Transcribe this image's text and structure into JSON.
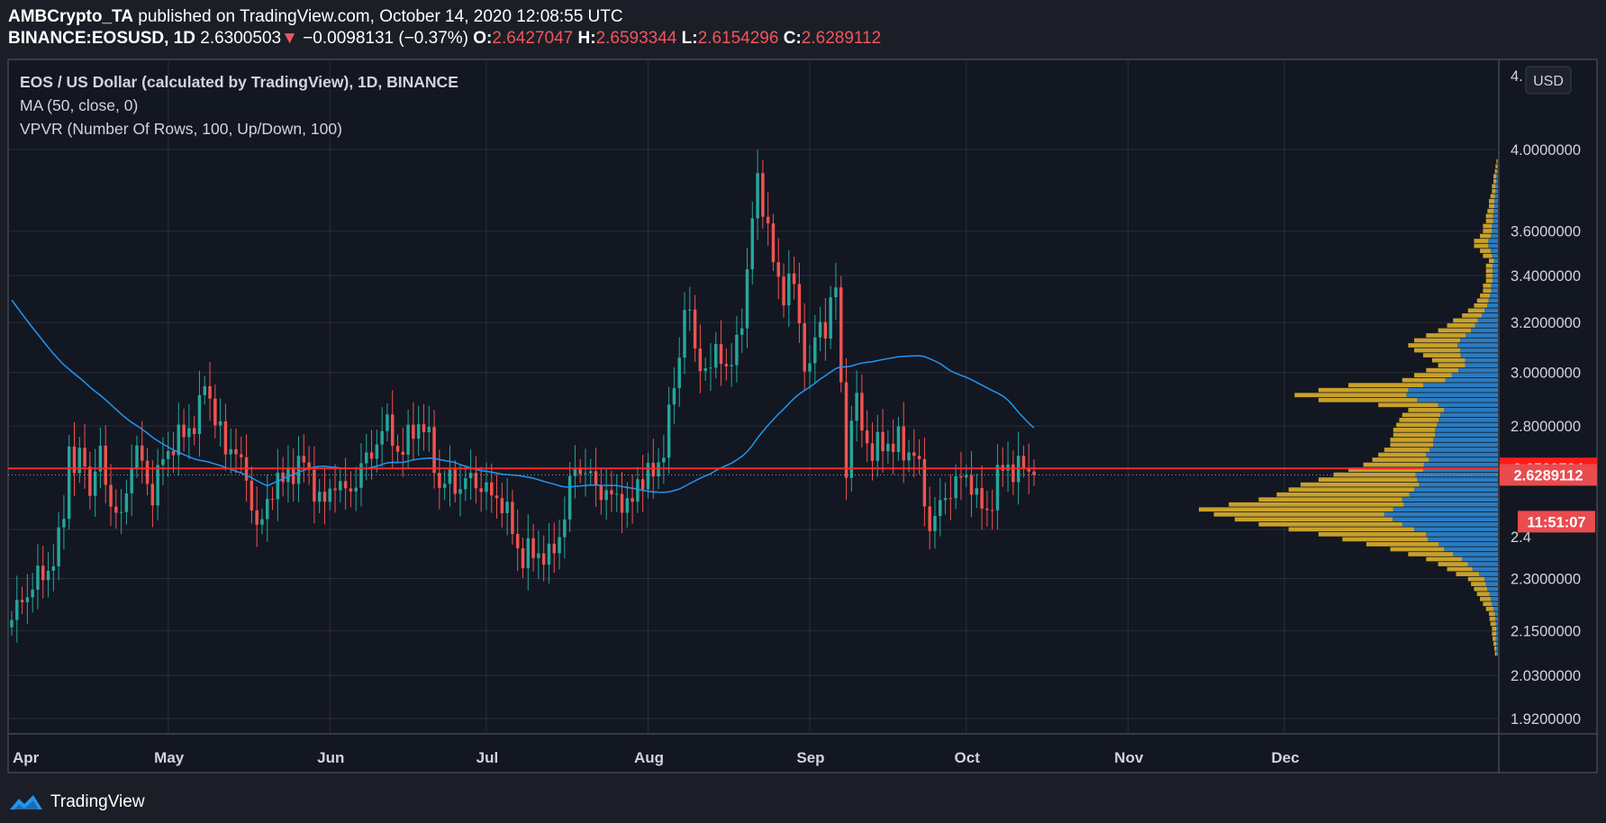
{
  "header": {
    "author": "AMBCrypto_TA",
    "published": "published on TradingView.com, October 14, 2020 12:08:55 UTC",
    "symbol": "BINANCE:EOSUSD, 1D",
    "last": "2.6300503",
    "down_arrow": "▼",
    "change": "−0.0098131 (−0.37%)",
    "o_label": "O:",
    "o_value": "2.6427047",
    "h_label": "H:",
    "h_value": "2.6593344",
    "l_label": "L:",
    "l_value": "2.6154296",
    "c_label": "C:",
    "c_value": "2.6289112"
  },
  "legend": {
    "line1": "EOS / US Dollar (calculated by TradingView), 1D, BINANCE",
    "line2": "MA (50, close, 0)",
    "line3": "VPVR (Number Of Rows, 100, Up/Down, 100)"
  },
  "currency_badge": "USD",
  "footer": {
    "brand": "TradingView"
  },
  "colors": {
    "background": "#131722",
    "frame": "#1c1e27",
    "grid": "#2a2e39",
    "up": "#26a69a",
    "down": "#ef5350",
    "ma": "#2196f3",
    "vp_up": "#2b7bbf",
    "vp_down": "#c8a12a",
    "price_line": "#ff2a2a"
  },
  "chart_data": {
    "type": "candlestick",
    "scale": "log",
    "ylim": [
      1.88,
      4.2
    ],
    "x_ticks": [
      "Apr",
      "May",
      "Jun",
      "Jul",
      "Aug",
      "Sep",
      "Oct",
      "Nov",
      "Dec"
    ],
    "y_ticks": [
      "4.0000000",
      "3.6000000",
      "3.4000000",
      "3.2000000",
      "3.0000000",
      "2.8000000",
      "2.3000000",
      "2.1500000",
      "2.0300000",
      "1.9200000"
    ],
    "top_partial_tick": "4.",
    "price_markers": [
      {
        "label": "2.6509724",
        "value": 2.6509724,
        "type": "red-line"
      },
      {
        "label": "2.6289112",
        "value": 2.6289112,
        "type": "last-close"
      },
      {
        "label": "11:51:07",
        "value": 2.475,
        "type": "countdown"
      }
    ],
    "partial_tick_under_countdown": "2.4",
    "series": [
      {
        "name": "EOS / US Dollar",
        "type": "candles",
        "start": "2020-04-01",
        "close": [
          2.18,
          2.22,
          2.25,
          2.27,
          2.3,
          2.32,
          2.33,
          2.38,
          2.5,
          2.76,
          2.6,
          2.75,
          2.55,
          2.66,
          2.7,
          2.55,
          2.5,
          2.48,
          2.62,
          2.72,
          2.68,
          2.6,
          2.55,
          2.68,
          2.7,
          2.74,
          2.76,
          2.78,
          2.8,
          2.86,
          2.98,
          2.86,
          2.8,
          2.7,
          2.74,
          2.7,
          2.62,
          2.55,
          2.45,
          2.48,
          2.58,
          2.62,
          2.6,
          2.64,
          2.66,
          2.68,
          2.62,
          2.58,
          2.52,
          2.56,
          2.62,
          2.58,
          2.56,
          2.6,
          2.66,
          2.68,
          2.72,
          2.78,
          2.8,
          2.76,
          2.68,
          2.74,
          2.8,
          2.8,
          2.78,
          2.72,
          2.58,
          2.6,
          2.62,
          2.58,
          2.6,
          2.62,
          2.6,
          2.58,
          2.56,
          2.56,
          2.52,
          2.48,
          2.4,
          2.36,
          2.38,
          2.38,
          2.37,
          2.36,
          2.4,
          2.45,
          2.56,
          2.66,
          2.65,
          2.63,
          2.6,
          2.58,
          2.56,
          2.55,
          2.56,
          2.52,
          2.54,
          2.62,
          2.64,
          2.62,
          2.66,
          2.76,
          2.9,
          3.0,
          3.3,
          3.2,
          3.0,
          3.05,
          3.0,
          3.1,
          3.05,
          3.0,
          3.1,
          3.25,
          3.5,
          3.85,
          3.75,
          3.6,
          3.4,
          3.3,
          3.4,
          3.35,
          3.1,
          3.0,
          3.1,
          3.2,
          3.15,
          3.45,
          3.05,
          2.62,
          2.9,
          2.85,
          2.75,
          2.7,
          2.73,
          2.75,
          2.72,
          2.75,
          2.7,
          2.72,
          2.68,
          2.55,
          2.45,
          2.5,
          2.55,
          2.58,
          2.6,
          2.62,
          2.63,
          2.55,
          2.52,
          2.5,
          2.6,
          2.65,
          2.66,
          2.64,
          2.66,
          2.65,
          2.63
        ]
      },
      {
        "name": "MA (50, close, 0)",
        "type": "line"
      },
      {
        "name": "VPVR (Number Of Rows, 100, Up/Down, 100)",
        "type": "volume-profile",
        "price_range": [
          2.08,
          3.95
        ],
        "totals": [
          0.01,
          0.012,
          0.015,
          0.018,
          0.02,
          0.02,
          0.025,
          0.028,
          0.03,
          0.04,
          0.05,
          0.06,
          0.07,
          0.08,
          0.09,
          0.1,
          0.14,
          0.17,
          0.2,
          0.24,
          0.3,
          0.36,
          0.44,
          0.52,
          0.6,
          0.7,
          0.8,
          0.88,
          0.95,
          1.0,
          0.9,
          0.8,
          0.74,
          0.7,
          0.66,
          0.6,
          0.55,
          0.5,
          0.45,
          0.42,
          0.4,
          0.38,
          0.36,
          0.36,
          0.35,
          0.35,
          0.34,
          0.33,
          0.32,
          0.3,
          0.4,
          0.6,
          0.68,
          0.6,
          0.5,
          0.32,
          0.28,
          0.24,
          0.2,
          0.22,
          0.25,
          0.28,
          0.3,
          0.28,
          0.24,
          0.2,
          0.17,
          0.15,
          0.12,
          0.1,
          0.08,
          0.07,
          0.06,
          0.05,
          0.05,
          0.04,
          0.04,
          0.04,
          0.04,
          0.03,
          0.05,
          0.06,
          0.08,
          0.08,
          0.06,
          0.05,
          0.05,
          0.04,
          0.04,
          0.035,
          0.03,
          0.03,
          0.025,
          0.02,
          0.02,
          0.015,
          0.015,
          0.01,
          0.008,
          0.005
        ],
        "up_share": [
          0.5,
          0.5,
          0.4,
          0.4,
          0.3,
          0.3,
          0.3,
          0.3,
          0.35,
          0.35,
          0.4,
          0.4,
          0.4,
          0.45,
          0.45,
          0.45,
          0.45,
          0.5,
          0.5,
          0.5,
          0.5,
          0.5,
          0.45,
          0.45,
          0.4,
          0.4,
          0.4,
          0.4,
          0.4,
          0.35,
          0.35,
          0.4,
          0.4,
          0.4,
          0.4,
          0.45,
          0.5,
          0.5,
          0.55,
          0.55,
          0.6,
          0.6,
          0.6,
          0.6,
          0.6,
          0.6,
          0.6,
          0.6,
          0.6,
          0.6,
          0.5,
          0.45,
          0.45,
          0.5,
          0.5,
          0.55,
          0.55,
          0.55,
          0.55,
          0.5,
          0.5,
          0.45,
          0.45,
          0.45,
          0.45,
          0.45,
          0.45,
          0.45,
          0.45,
          0.45,
          0.45,
          0.45,
          0.45,
          0.45,
          0.45,
          0.45,
          0.45,
          0.45,
          0.45,
          0.45,
          0.4,
          0.4,
          0.4,
          0.4,
          0.4,
          0.4,
          0.4,
          0.4,
          0.4,
          0.4,
          0.4,
          0.4,
          0.4,
          0.4,
          0.4,
          0.4,
          0.4,
          0.4,
          0.4,
          0.4
        ]
      }
    ]
  }
}
